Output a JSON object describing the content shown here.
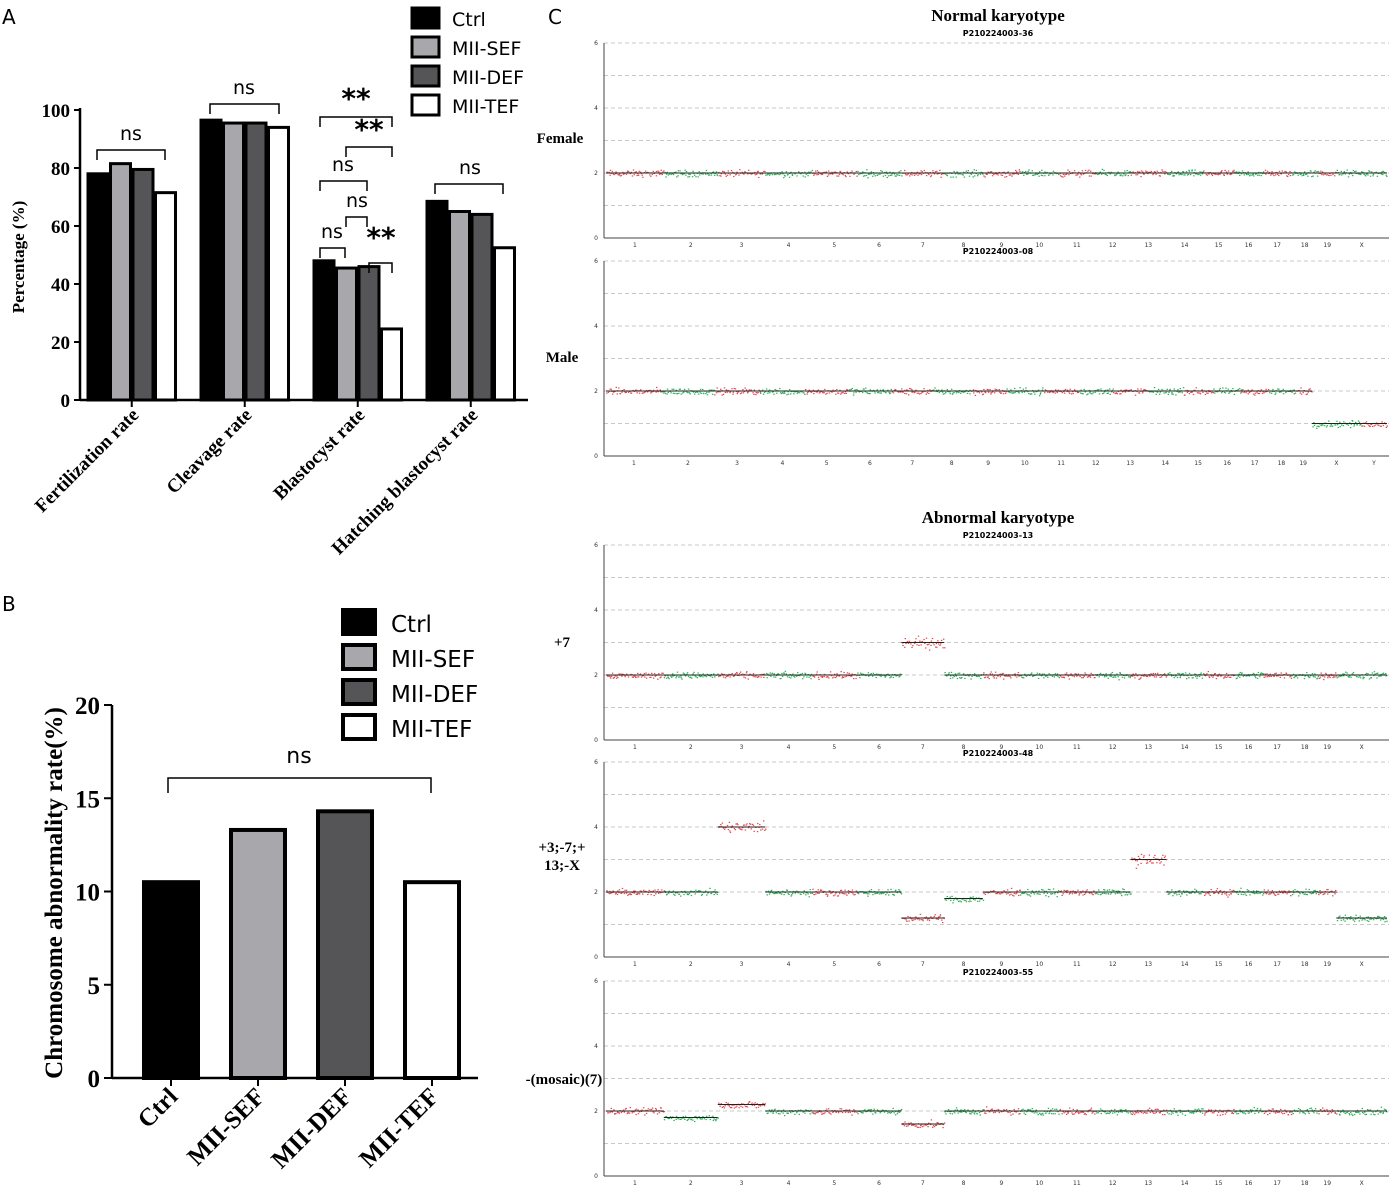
{
  "panels": {
    "a_letter": "A",
    "b_letter": "B",
    "c_letter": "C"
  },
  "colors": {
    "ctrl": "#000000",
    "sef": "#a8a8ac",
    "def": "#555558",
    "tef": "#ffffff",
    "red": "#e8474b",
    "green": "#27b455",
    "grid": "#c8c8c8"
  },
  "chart_data": [
    {
      "type": "bar",
      "panel": "A",
      "ylabel": "Percentage (%)",
      "ylim": [
        0,
        100
      ],
      "yticks": [
        "0",
        "20",
        "40",
        "60",
        "80",
        "100"
      ],
      "categories": [
        "Fertilization rate",
        "Cleavage rate",
        "Blastocyst rate",
        "Hatching blastocyst rate"
      ],
      "series": [
        {
          "name": "Ctrl",
          "values": [
            78,
            96.5,
            48,
            68.5
          ]
        },
        {
          "name": "MII-SEF",
          "values": [
            81.5,
            95.5,
            45.5,
            65
          ]
        },
        {
          "name": "MII-DEF",
          "values": [
            79.5,
            95.5,
            46,
            64
          ]
        },
        {
          "name": "MII-TEF",
          "values": [
            71.5,
            94,
            24.5,
            52.5
          ]
        }
      ],
      "legend": [
        "Ctrl",
        "MII-SEF",
        "MII-DEF",
        "MII-TEF"
      ],
      "annotations": [
        "ns",
        "ns",
        "**",
        "**",
        "ns",
        "ns",
        "ns",
        "**",
        "ns"
      ]
    },
    {
      "type": "bar",
      "panel": "B",
      "ylabel": "Chromosome abnormality rate(%)",
      "ylim": [
        0,
        20
      ],
      "yticks": [
        "0",
        "5",
        "10",
        "15",
        "20"
      ],
      "categories": [
        "Ctrl",
        "MII-SEF",
        "MII-DEF",
        "MII-TEF"
      ],
      "values": [
        10.5,
        13.3,
        14.3,
        10.5
      ],
      "legend": [
        "Ctrl",
        "MII-SEF",
        "MII-DEF",
        "MII-TEF"
      ],
      "annotation": "ns"
    },
    {
      "type": "scatter",
      "panel": "C",
      "normal_title": "Normal karyotype",
      "abnormal_title": "Abnormal karyotype",
      "ylim": [
        0,
        6
      ],
      "yticks": [
        "0",
        "2",
        "4",
        "6"
      ],
      "tracks": [
        {
          "sample": "P210224003-36",
          "label": "Female",
          "chromosomes": [
            "1",
            "2",
            "3",
            "4",
            "5",
            "6",
            "7",
            "8",
            "9",
            "10",
            "11",
            "12",
            "13",
            "14",
            "15",
            "16",
            "17",
            "18",
            "19",
            "X"
          ],
          "copy_numbers": [
            2,
            2,
            2,
            2,
            2,
            2,
            2,
            2,
            2,
            2,
            2,
            2,
            2,
            2,
            2,
            2,
            2,
            2,
            2,
            2
          ]
        },
        {
          "sample": "P210224003-08",
          "label": "Male",
          "chromosomes": [
            "1",
            "2",
            "3",
            "4",
            "5",
            "6",
            "7",
            "8",
            "9",
            "10",
            "11",
            "12",
            "13",
            "14",
            "15",
            "16",
            "17",
            "18",
            "19",
            "X",
            "Y"
          ],
          "copy_numbers": [
            2,
            2,
            2,
            2,
            2,
            2,
            2,
            2,
            2,
            2,
            2,
            2,
            2,
            2,
            2,
            2,
            2,
            2,
            2,
            1,
            1
          ]
        },
        {
          "sample": "P210224003-13",
          "label": "+7",
          "chromosomes": [
            "1",
            "2",
            "3",
            "4",
            "5",
            "6",
            "7",
            "8",
            "9",
            "10",
            "11",
            "12",
            "13",
            "14",
            "15",
            "16",
            "17",
            "18",
            "19",
            "X"
          ],
          "copy_numbers": [
            2,
            2,
            2,
            2,
            2,
            2,
            3,
            2,
            2,
            2,
            2,
            2,
            2,
            2,
            2,
            2,
            2,
            2,
            2,
            2
          ]
        },
        {
          "sample": "P210224003-48",
          "label": "+3;-7;+\n13;-X",
          "chromosomes": [
            "1",
            "2",
            "3",
            "4",
            "5",
            "6",
            "7",
            "8",
            "9",
            "10",
            "11",
            "12",
            "13",
            "14",
            "15",
            "16",
            "17",
            "18",
            "19",
            "X"
          ],
          "copy_numbers": [
            2,
            2,
            4,
            2,
            2,
            2,
            1.2,
            1.8,
            2,
            2,
            2,
            2,
            3,
            2,
            2,
            2,
            2,
            2,
            2,
            1.2
          ]
        },
        {
          "sample": "P210224003-55",
          "label": "-(mosaic)(7)",
          "chromosomes": [
            "1",
            "2",
            "3",
            "4",
            "5",
            "6",
            "7",
            "8",
            "9",
            "10",
            "11",
            "12",
            "13",
            "14",
            "15",
            "16",
            "17",
            "18",
            "19",
            "X"
          ],
          "copy_numbers": [
            2,
            1.8,
            2.2,
            2,
            2,
            2,
            1.6,
            2,
            2,
            2,
            2,
            2,
            2,
            2,
            2,
            2,
            2,
            2,
            2,
            2
          ]
        }
      ]
    }
  ]
}
